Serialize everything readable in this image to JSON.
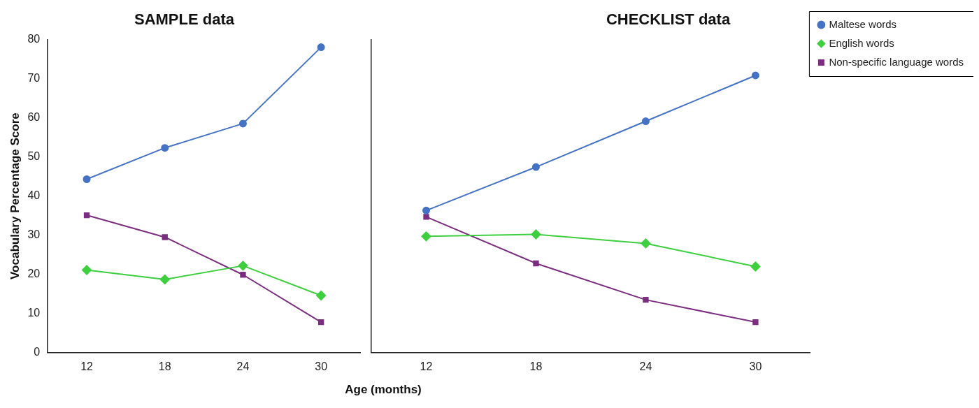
{
  "chart_data": [
    {
      "type": "line",
      "title": "SAMPLE data",
      "xlabel": "Age (months)",
      "ylabel": "Vocabulary Percentage Score",
      "categories": [
        "12",
        "18",
        "24",
        "30"
      ],
      "ylim": [
        0,
        80
      ],
      "yticks": [
        0,
        10,
        20,
        30,
        40,
        50,
        60,
        70,
        80
      ],
      "grid": false,
      "legend": false,
      "series": [
        {
          "color": "#4472c4",
          "marker": "circle",
          "values": [
            44.3,
            52.3,
            58.5,
            78
          ]
        },
        {
          "color": "#3ecf3e",
          "marker": "diamond",
          "values": [
            21.1,
            18.7,
            22.2,
            14.6
          ]
        },
        {
          "color": "#7b2d7f",
          "marker": "square",
          "values": [
            35.1,
            29.5,
            19.9,
            7.8
          ]
        }
      ]
    },
    {
      "type": "line",
      "title": "CHECKLIST data",
      "categories": [
        "12",
        "18",
        "24",
        "30"
      ],
      "ylim": [
        0,
        80
      ],
      "tick_labels": "x",
      "grid": false,
      "legend": "top right",
      "series": [
        {
          "name": "Maltese words",
          "color": "#4472c4",
          "marker": "circle",
          "values": [
            36.3,
            47.4,
            59.1,
            70.8
          ]
        },
        {
          "name": "English words",
          "color": "#3ecf3e",
          "marker": "diamond",
          "values": [
            29.7,
            30.2,
            27.9,
            22.0
          ]
        },
        {
          "name": "Non-specific language words",
          "color": "#7b2d7f",
          "marker": "square",
          "values": [
            34.7,
            22.8,
            13.5,
            7.8
          ]
        }
      ]
    }
  ]
}
